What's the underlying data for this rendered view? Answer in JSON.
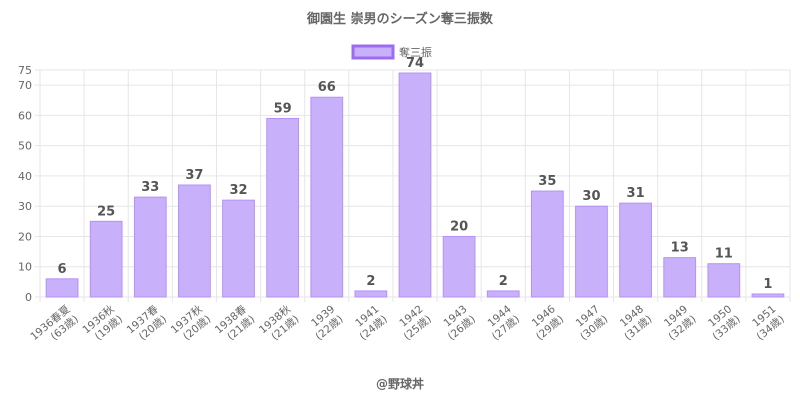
{
  "chart_data": {
    "type": "bar",
    "title": "御園生 崇男のシーズン奪三振数",
    "credit": "@野球丼",
    "legend": {
      "position": "top",
      "entries": [
        "奪三振"
      ]
    },
    "series": [
      {
        "name": "奪三振",
        "values": [
          6,
          25,
          33,
          37,
          32,
          59,
          66,
          2,
          74,
          20,
          2,
          35,
          30,
          31,
          13,
          11,
          1
        ]
      }
    ],
    "categories": [
      [
        "1936春夏",
        "(63歳)"
      ],
      [
        "1936秋",
        "(19歳)"
      ],
      [
        "1937春",
        "(20歳)"
      ],
      [
        "1937秋",
        "(20歳)"
      ],
      [
        "1938春",
        "(21歳)"
      ],
      [
        "1938秋",
        "(21歳)"
      ],
      [
        "1939",
        "(22歳)"
      ],
      [
        "1941",
        "(24歳)"
      ],
      [
        "1942",
        "(25歳)"
      ],
      [
        "1943",
        "(26歳)"
      ],
      [
        "1944",
        "(27歳)"
      ],
      [
        "1946",
        "(29歳)"
      ],
      [
        "1947",
        "(30歳)"
      ],
      [
        "1948",
        "(31歳)"
      ],
      [
        "1949",
        "(32歳)"
      ],
      [
        "1950",
        "(33歳)"
      ],
      [
        "1951",
        "(34歳)"
      ]
    ],
    "yticks": [
      0,
      10,
      20,
      30,
      40,
      50,
      60,
      70,
      75
    ],
    "ylim": [
      0,
      75
    ],
    "grid": true,
    "colors": {
      "bar_fill": "#c9b0fb",
      "bar_stroke": "#b591f7",
      "legend_stroke": "#9b6cf0"
    }
  }
}
